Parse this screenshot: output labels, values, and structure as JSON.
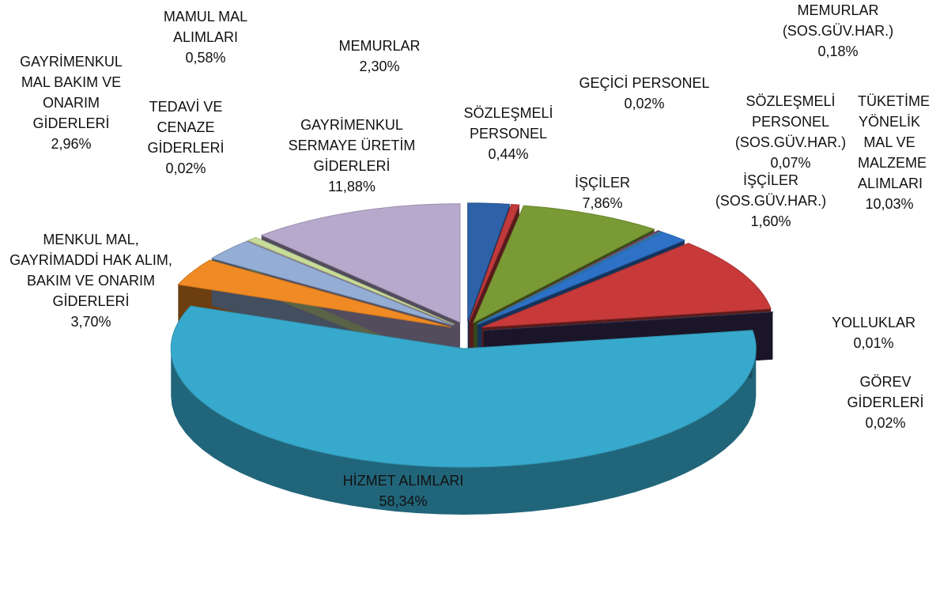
{
  "chart_data": {
    "type": "pie",
    "categories": [
      "MEMURLAR",
      "SÖZLEŞMELİ PERSONEL",
      "İŞÇİLER",
      "GEÇİCİ PERSONEL",
      "MEMURLAR (SOS.GÜV.HAR.)",
      "SÖZLEŞMELİ PERSONEL (SOS.GÜV.HAR.)",
      "İŞÇİLER (SOS.GÜV.HAR.)",
      "TÜKETİME YÖNELİK MAL VE MALZEME ALIMLARI",
      "YOLLUKLAR",
      "GÖREV GİDERLERİ",
      "HİZMET ALIMLARI",
      "MENKUL MAL, GAYRİMADDİ HAK ALIM, BAKIM VE ONARIM GİDERLERİ",
      "GAYRİMENKUL MAL BAKIM VE ONARIM GİDERLERİ",
      "TEDAVİ VE CENAZE GİDERLERİ",
      "MAMUL MAL ALIMLARI",
      "GAYRİMENKUL SERMAYE ÜRETİM GİDERLERİ"
    ],
    "values": [
      2.3,
      0.44,
      7.86,
      0.02,
      0.18,
      0.07,
      1.6,
      10.03,
      0.01,
      0.02,
      58.34,
      3.7,
      2.96,
      0.02,
      0.58,
      11.88
    ],
    "value_labels": [
      "2,30%",
      "0,44%",
      "7,86%",
      "0,02%",
      "0,18%",
      "0,07%",
      "1,60%",
      "10,03%",
      "0,01%",
      "0,02%",
      "58,34%",
      "3,70%",
      "2,96%",
      "0,02%",
      "0,58%",
      "11,88%"
    ],
    "colors": [
      "#2e62a8",
      "#c0393b",
      "#7a9a35",
      "#e07a20",
      "#6b4a8a",
      "#2f9fb5",
      "#2e72c8",
      "#c83a3a",
      "#7a9a35",
      "#3c2e5a",
      "#37a9cc",
      "#f08a24",
      "#94add4",
      "#d8a0a0",
      "#c9dd9b",
      "#b7a9cc"
    ]
  }
}
